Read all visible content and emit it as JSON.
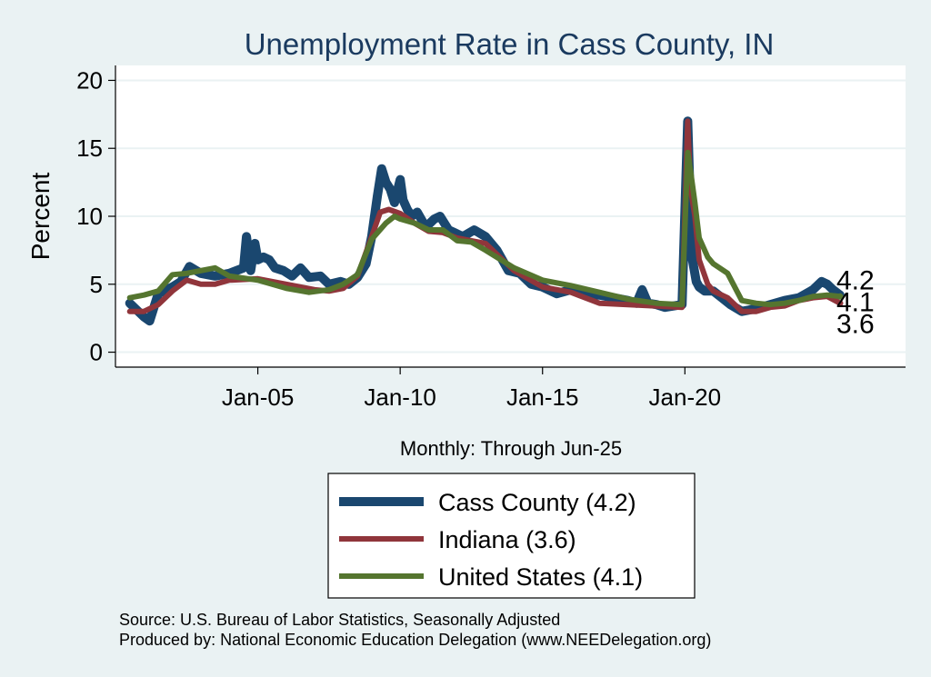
{
  "chart_data": {
    "type": "line",
    "title": "Unemployment Rate in Cass  County, IN",
    "ylabel": "Percent",
    "xlabel": "Monthly: Through Jun-25",
    "xlim": [
      2000.0,
      2027.75
    ],
    "ylim": [
      -1.1,
      21.1
    ],
    "yticks": [
      0,
      5,
      10,
      15,
      20
    ],
    "xticks": [
      {
        "label": "Jan-05",
        "x": 2005.0
      },
      {
        "label": "Jan-10",
        "x": 2010.0
      },
      {
        "label": "Jan-15",
        "x": 2015.0
      },
      {
        "label": "Jan-20",
        "x": 2020.0
      }
    ],
    "grid": true,
    "legend_position": "bottom",
    "end_labels": [
      {
        "text": "4.2",
        "y": 4.2
      },
      {
        "text": "4.1",
        "y": 4.1
      },
      {
        "text": "3.6",
        "y": 3.6
      }
    ],
    "series": [
      {
        "name": "Cass  County (4.2)",
        "color": "#1a476f",
        "width": 10,
        "x": [
          2000.5,
          2001.0,
          2001.2,
          2001.5,
          2002.0,
          2002.3,
          2002.6,
          2003.0,
          2003.5,
          2004.0,
          2004.5,
          2004.6,
          2004.75,
          2004.9,
          2005.0,
          2005.2,
          2005.4,
          2005.6,
          2005.9,
          2006.2,
          2006.5,
          2006.8,
          2007.2,
          2007.5,
          2007.9,
          2008.2,
          2008.5,
          2008.8,
          2009.0,
          2009.2,
          2009.35,
          2009.5,
          2009.65,
          2009.8,
          2010.0,
          2010.1,
          2010.25,
          2010.4,
          2010.6,
          2010.9,
          2011.2,
          2011.4,
          2011.7,
          2011.9,
          2012.2,
          2012.6,
          2013.0,
          2013.4,
          2013.8,
          2014.2,
          2014.6,
          2015.0,
          2015.5,
          2016.0,
          2016.5,
          2017.0,
          2017.5,
          2018.0,
          2018.3,
          2018.5,
          2018.7,
          2019.0,
          2019.3,
          2019.6,
          2019.9,
          2020.1,
          2020.25,
          2020.4,
          2020.5,
          2020.7,
          2021.0,
          2021.3,
          2021.6,
          2022.0,
          2022.5,
          2023.0,
          2023.5,
          2024.0,
          2024.5,
          2024.8,
          2025.0,
          2025.2,
          2025.45
        ],
        "y": [
          3.6,
          2.6,
          2.3,
          4.3,
          4.8,
          5.2,
          6.3,
          5.8,
          5.6,
          5.8,
          6.2,
          8.5,
          6.0,
          8.0,
          6.8,
          7.0,
          6.8,
          6.2,
          6.0,
          5.6,
          6.2,
          5.5,
          5.6,
          5.0,
          5.2,
          5.0,
          5.5,
          6.5,
          8.5,
          11.5,
          13.5,
          12.5,
          12.0,
          11.0,
          12.7,
          11.2,
          10.5,
          10.0,
          10.3,
          9.2,
          9.8,
          10.0,
          9.0,
          8.8,
          8.5,
          9.0,
          8.5,
          7.5,
          6.0,
          5.8,
          5.0,
          4.8,
          4.3,
          4.6,
          4.2,
          4.2,
          4.0,
          3.8,
          3.6,
          4.6,
          3.6,
          3.5,
          3.3,
          3.4,
          3.5,
          17.0,
          7.0,
          5.2,
          4.8,
          4.5,
          4.5,
          4.0,
          3.5,
          3.0,
          3.2,
          3.5,
          3.8,
          4.0,
          4.6,
          5.2,
          5.0,
          4.6,
          4.2
        ]
      },
      {
        "name": "Indiana (3.6)",
        "color": "#90353b",
        "width": 6,
        "x": [
          2000.5,
          2001.0,
          2001.5,
          2002.0,
          2002.5,
          2003.0,
          2003.5,
          2004.0,
          2005.0,
          2006.0,
          2007.0,
          2007.5,
          2008.0,
          2008.5,
          2009.0,
          2009.3,
          2009.6,
          2010.0,
          2010.5,
          2011.0,
          2011.5,
          2012.0,
          2013.0,
          2014.0,
          2015.0,
          2016.0,
          2017.0,
          2018.0,
          2019.0,
          2019.9,
          2020.1,
          2020.2,
          2020.35,
          2020.5,
          2020.8,
          2021.0,
          2021.5,
          2022.0,
          2022.5,
          2023.0,
          2023.5,
          2024.0,
          2024.5,
          2025.0,
          2025.45
        ],
        "y": [
          3.0,
          3.0,
          3.5,
          4.5,
          5.3,
          5.0,
          5.0,
          5.3,
          5.4,
          5.0,
          4.6,
          4.5,
          4.7,
          5.6,
          8.5,
          10.3,
          10.5,
          10.2,
          9.5,
          8.9,
          8.8,
          8.4,
          8.0,
          6.0,
          4.8,
          4.4,
          3.6,
          3.5,
          3.4,
          3.3,
          17.0,
          12.0,
          10.0,
          6.8,
          5.0,
          4.5,
          4.0,
          3.0,
          3.0,
          3.3,
          3.4,
          3.8,
          4.0,
          4.1,
          3.6
        ]
      },
      {
        "name": "United States (4.1)",
        "color": "#55752f",
        "width": 6,
        "x": [
          2000.5,
          2001.0,
          2001.5,
          2002.0,
          2002.5,
          2003.0,
          2003.5,
          2004.0,
          2005.0,
          2006.0,
          2006.8,
          2007.5,
          2008.0,
          2008.5,
          2009.0,
          2009.5,
          2009.8,
          2010.0,
          2010.5,
          2011.0,
          2011.5,
          2012.0,
          2012.5,
          2013.0,
          2014.0,
          2015.0,
          2016.0,
          2017.0,
          2018.0,
          2019.0,
          2019.9,
          2020.1,
          2020.2,
          2020.35,
          2020.5,
          2020.8,
          2021.0,
          2021.5,
          2022.0,
          2022.5,
          2023.0,
          2023.5,
          2024.0,
          2024.5,
          2025.0,
          2025.45
        ],
        "y": [
          4.0,
          4.2,
          4.5,
          5.7,
          5.8,
          6.0,
          6.2,
          5.6,
          5.3,
          4.7,
          4.4,
          4.6,
          5.0,
          5.7,
          8.3,
          9.5,
          10.0,
          9.8,
          9.5,
          9.0,
          9.0,
          8.2,
          8.1,
          7.5,
          6.2,
          5.3,
          4.9,
          4.4,
          3.9,
          3.6,
          3.5,
          14.7,
          13.3,
          11.0,
          8.4,
          7.0,
          6.5,
          5.8,
          3.8,
          3.6,
          3.5,
          3.6,
          3.8,
          4.1,
          4.2,
          4.1
        ]
      }
    ]
  },
  "source_lines": [
    "Source: U.S. Bureau of Labor Statistics, Seasonally Adjusted",
    "Produced by: National Economic Education Delegation (www.NEEDelegation.org)"
  ]
}
